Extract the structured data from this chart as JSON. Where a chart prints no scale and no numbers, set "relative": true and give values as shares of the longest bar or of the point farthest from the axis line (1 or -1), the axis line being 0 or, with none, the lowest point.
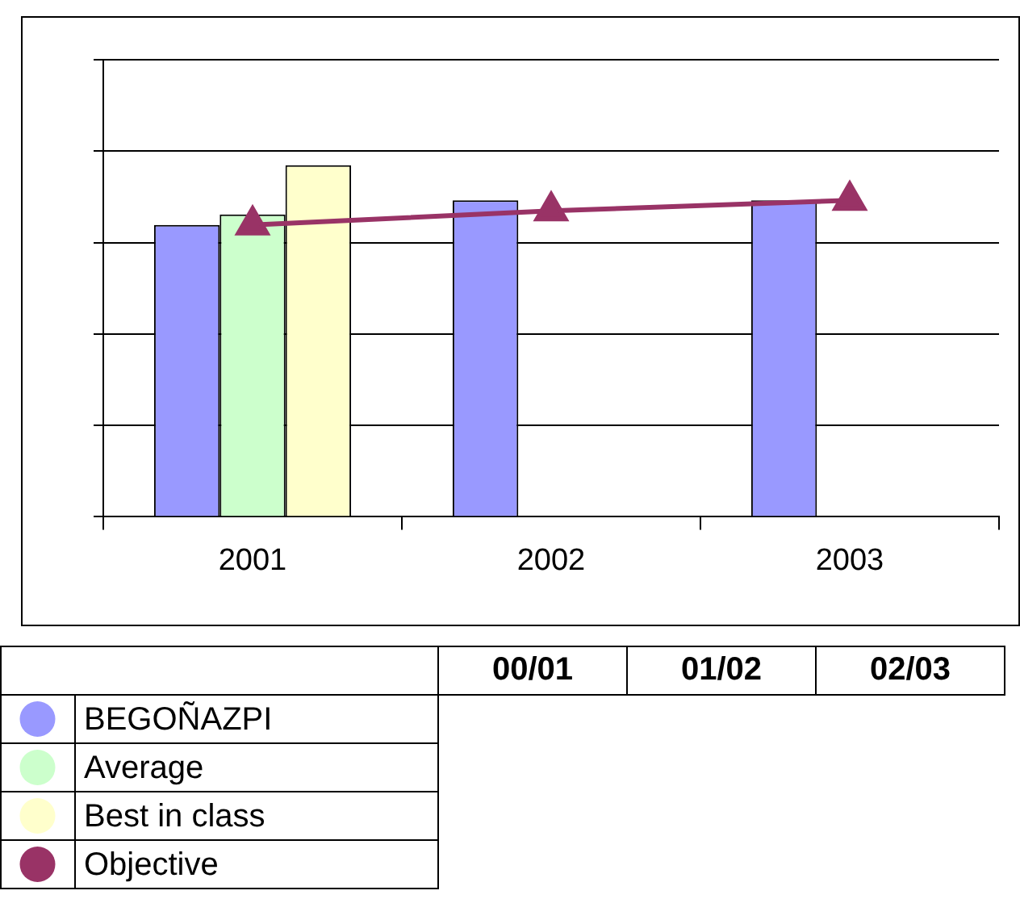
{
  "chart_data": {
    "type": "bar",
    "categories": [
      "2001",
      "2002",
      "2003"
    ],
    "relative": true,
    "grid": "y",
    "legend": "bottom",
    "marker": "triangle",
    "series": [
      {
        "name": "BEGOÑAZPI",
        "color": "#9999ff",
        "values": [
          0.83,
          0.9,
          0.9
        ]
      },
      {
        "name": "Average",
        "color": "#ccffcc",
        "values": [
          0.86,
          null,
          null
        ]
      },
      {
        "name": "Best in class",
        "color": "#ffffcc",
        "values": [
          1,
          null,
          null
        ]
      },
      {
        "name": "Objective",
        "color": "#993366",
        "type": "line",
        "values": [
          0.83,
          0.87,
          0.9
        ]
      }
    ],
    "annotations": [
      "00/01",
      "01/02",
      "02/03"
    ]
  }
}
